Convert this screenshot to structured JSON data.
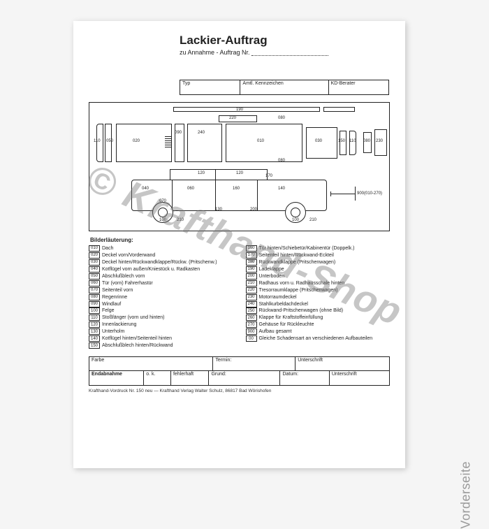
{
  "title": "Lackier-Auftrag",
  "subtitle_prefix": "zu Annahme - Auftrag Nr.",
  "header_boxes": {
    "typ": "Typ",
    "kennz": "Amtl. Kennzeichen",
    "kd": "KD-Berater"
  },
  "diagram_labels": {
    "top_190": "190",
    "top_220": "220",
    "top_080a": "080",
    "mid_020": "020",
    "mid_090": "090",
    "mid_240": "240",
    "mid_010": "010",
    "mid_030": "030",
    "mid_150": "150",
    "mid_110r": "110",
    "mid_080r": "080",
    "mid_230": "230",
    "left_110": "110",
    "left_050": "050",
    "mid_080b": "080",
    "car_120a": "120",
    "car_120b": "120",
    "car_170": "170",
    "car_040": "040",
    "car_060": "060",
    "car_160": "160",
    "car_140": "140",
    "car_070": "070",
    "car_130": "130",
    "car_200": "200",
    "car_100a": "100",
    "car_210a": "210",
    "car_100b": "100",
    "car_210b": "210",
    "right_900": "900(010-270)"
  },
  "legend_title": "Bilderläuterung:",
  "legend_left": [
    {
      "c": "010",
      "t": "Dach"
    },
    {
      "c": "020",
      "t": "Deckel vorn/Vorderwand"
    },
    {
      "c": "030",
      "t": "Deckel hinten/Rückwandklappe/Rückw. (Pritschenw.)"
    },
    {
      "c": "040",
      "t": "Kotflügel vorn außen/Kniestück u. Radkasten"
    },
    {
      "c": "050",
      "t": "Abschlußblech vorn"
    },
    {
      "c": "060",
      "t": "Tür (vorn) Fahrerhastür"
    },
    {
      "c": "070",
      "t": "Seitenteil vorn"
    },
    {
      "c": "080",
      "t": "Regenrinne"
    },
    {
      "c": "090",
      "t": "Windlauf"
    },
    {
      "c": "100",
      "t": "Felge"
    },
    {
      "c": "110",
      "t": "Stoßfänger (vorn und hinten)"
    },
    {
      "c": "120",
      "t": "Innenlackierung"
    },
    {
      "c": "130",
      "t": "Unterholm"
    },
    {
      "c": "140",
      "t": "Kotflügel hinten/Seitenteil hinten"
    },
    {
      "c": "150",
      "t": "Abschlußblech hinten/Rückwand"
    }
  ],
  "legend_right": [
    {
      "c": "160",
      "t": "Tür hinten/Schiebetür/Kabinentür (Doppelk.)"
    },
    {
      "c": "170",
      "t": "Seitenteil hinten/Rückwand-Eckteil"
    },
    {
      "c": "180",
      "t": "Rückwandklappe (Pritschenwagen)"
    },
    {
      "c": "190",
      "t": "Ladeklappe"
    },
    {
      "c": "200",
      "t": "Unterboden"
    },
    {
      "c": "210",
      "t": "Radhaus vorn u. Radhausschale hinten"
    },
    {
      "c": "220",
      "t": "Tresorraumklappe (Pritschenwagen)"
    },
    {
      "c": "230",
      "t": "Motorraumdeckel"
    },
    {
      "c": "240",
      "t": "Stahlkurbeldachdeckel"
    },
    {
      "c": "250",
      "t": "Rückwand-Pritschenwagen (ohne Bild)"
    },
    {
      "c": "260",
      "t": "Klappe für Kraftstoffeinfüllung"
    },
    {
      "c": "270",
      "t": "Gehäuse für Rückleuchte"
    },
    {
      "c": "900",
      "t": "Aufbau gesamt"
    },
    {
      "c": "00",
      "t": "Gleiche Schadensart an verschiedenen Aufbauteilen"
    }
  ],
  "bottom": {
    "farbe": "Farbe",
    "termin": "Termin:",
    "unterschrift": "Unterschrift",
    "endabnahme": "Endabnahme",
    "ok": "o. k.",
    "fehlerhaft": "fehlerhaft",
    "grund": "Grund:",
    "datum": "Datum:",
    "unterschrift2": "Unterschrift"
  },
  "footer": "Krafthand-Vordruck Nr. 150 neu  —  Krafthand Verlag Walter Schulz, 86817 Bad Wörishofen",
  "watermark": "© Krafthand-Shop",
  "side_label": "Vorderseite",
  "colors": {
    "ink": "#222222",
    "paper": "#ffffff",
    "wm": "rgba(120,120,120,0.42)",
    "side": "#9a9a9a"
  }
}
